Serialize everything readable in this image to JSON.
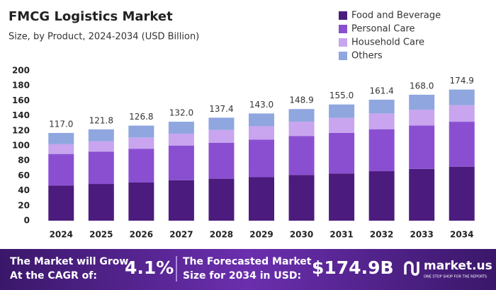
{
  "chart_data": {
    "type": "stacked-bar",
    "title": "FMCG Logistics Market",
    "subtitle": "Size, by Product, 2024-2034 (USD Billion)",
    "categories": [
      "2024",
      "2025",
      "2026",
      "2027",
      "2028",
      "2029",
      "2030",
      "2031",
      "2032",
      "2033",
      "2034"
    ],
    "series": [
      {
        "name": "Food and Beverage",
        "color": "#4b1b7d",
        "values": [
          47,
          49,
          51,
          54,
          56,
          58,
          61,
          63,
          66,
          69,
          72
        ]
      },
      {
        "name": "Personal Care",
        "color": "#8a4fd1",
        "values": [
          42,
          43,
          45,
          46,
          48,
          50,
          52,
          54,
          56,
          58,
          60
        ]
      },
      {
        "name": "Household Care",
        "color": "#c8a5ee",
        "values": [
          13,
          14,
          15,
          16,
          17,
          18,
          19,
          20,
          21,
          21,
          22
        ]
      },
      {
        "name": "Others",
        "color": "#8fa6df",
        "values": [
          15,
          15.8,
          15.8,
          16,
          16.4,
          17,
          16.9,
          18,
          18.4,
          20,
          20.9
        ]
      }
    ],
    "totals": [
      117,
      121.8,
      126.8,
      132,
      137.4,
      143,
      148.9,
      155,
      161.4,
      168,
      174.9
    ],
    "total_labels": [
      "117.0",
      "121.8",
      "126.8",
      "132.0",
      "137.4",
      "143.0",
      "148.9",
      "155.0",
      "161.4",
      "168.0",
      "174.9"
    ],
    "ylim": [
      0,
      200
    ],
    "yticks": [
      0,
      20,
      40,
      60,
      80,
      100,
      120,
      140,
      160,
      180,
      200
    ],
    "grid": false,
    "legend": "top-right"
  },
  "footer": {
    "cagr_text": [
      "The Market will Grow",
      "At the CAGR of:"
    ],
    "cagr": "4.1%",
    "forecast_text": [
      "The Forecasted Market",
      "Size for 2034 in USD:"
    ],
    "forecast": "$174.9B",
    "brand": "market.us",
    "tagline": "ONE STOP SHOP FOR THE REPORTS"
  }
}
